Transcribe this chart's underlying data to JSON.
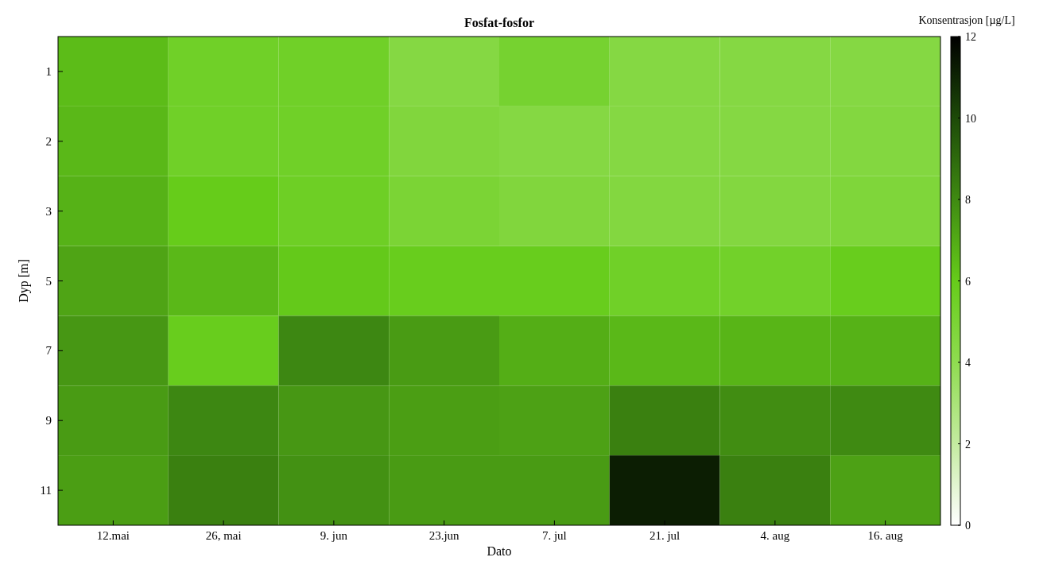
{
  "chart_data": {
    "type": "heatmap",
    "title": "Fosfat-fosfor",
    "xlabel": "Dato",
    "ylabel": "Dyp [m]",
    "clabel": "Konsentrasjon [µg/L]",
    "categories": [
      "12.mai",
      "26, mai",
      "9. jun",
      "23.jun",
      "7. jul",
      "21. jul",
      "4. aug",
      "16. aug"
    ],
    "y_categories": [
      "1",
      "2",
      "3",
      "5",
      "7",
      "9",
      "11"
    ],
    "cells": [
      [
        6.5,
        5.5,
        5.5,
        4.5,
        5.2,
        4.5,
        4.5,
        4.5
      ],
      [
        6.6,
        5.5,
        5.5,
        4.7,
        4.5,
        4.5,
        4.5,
        4.6
      ],
      [
        6.8,
        6,
        5.6,
        5,
        4.7,
        4.6,
        4.6,
        4.8
      ],
      [
        7.2,
        6.6,
        6.1,
        5.9,
        5.9,
        5.5,
        5.4,
        5.9
      ],
      [
        7.6,
        5.9,
        8.1,
        7.5,
        6.9,
        6.6,
        6.7,
        6.8
      ],
      [
        7.5,
        8.1,
        7.6,
        7.4,
        7.3,
        8.3,
        7.9,
        8
      ],
      [
        7.4,
        8.3,
        7.8,
        7.5,
        7.5,
        11.2,
        8.3,
        7.3
      ]
    ],
    "clim": [
      0,
      12
    ],
    "cticks": [
      0,
      2,
      4,
      6,
      8,
      10,
      12
    ]
  }
}
